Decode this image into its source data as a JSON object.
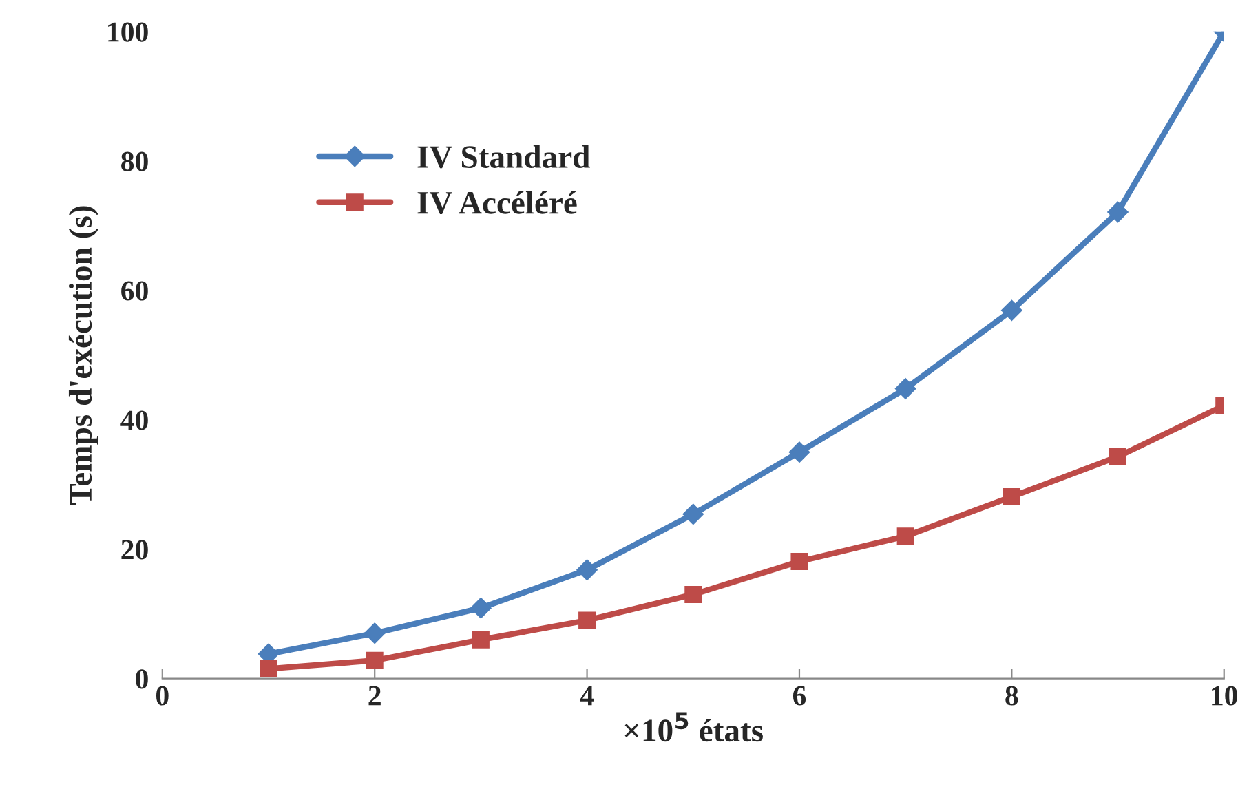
{
  "chart_data": {
    "type": "line",
    "xlabel": "×10$^{5}$ états",
    "ylabel": "Temps d'exécution (s)",
    "x": [
      1,
      2,
      3,
      4,
      5,
      6,
      7,
      8,
      9,
      10
    ],
    "series": [
      {
        "name": "IV Standard",
        "color": "#4a7ebb",
        "marker": "diamond",
        "values": [
          3.8,
          7.0,
          10.9,
          16.8,
          25.4,
          35,
          44.8,
          56.9,
          72.1,
          100
        ]
      },
      {
        "name": "IV Accéléré",
        "color": "#be4b48",
        "marker": "square",
        "values": [
          1.5,
          2.8,
          6.0,
          9.0,
          13.0,
          18.1,
          22.0,
          28.1,
          34.3,
          42.2
        ]
      }
    ],
    "xlim": [
      0,
      10
    ],
    "xticks": [
      0,
      2,
      4,
      6,
      8,
      10
    ],
    "ylim": [
      0,
      100
    ],
    "yticks": [
      0,
      20,
      40,
      60,
      80,
      100
    ],
    "grid": false,
    "legend": "top left",
    "line_style": "solid"
  }
}
